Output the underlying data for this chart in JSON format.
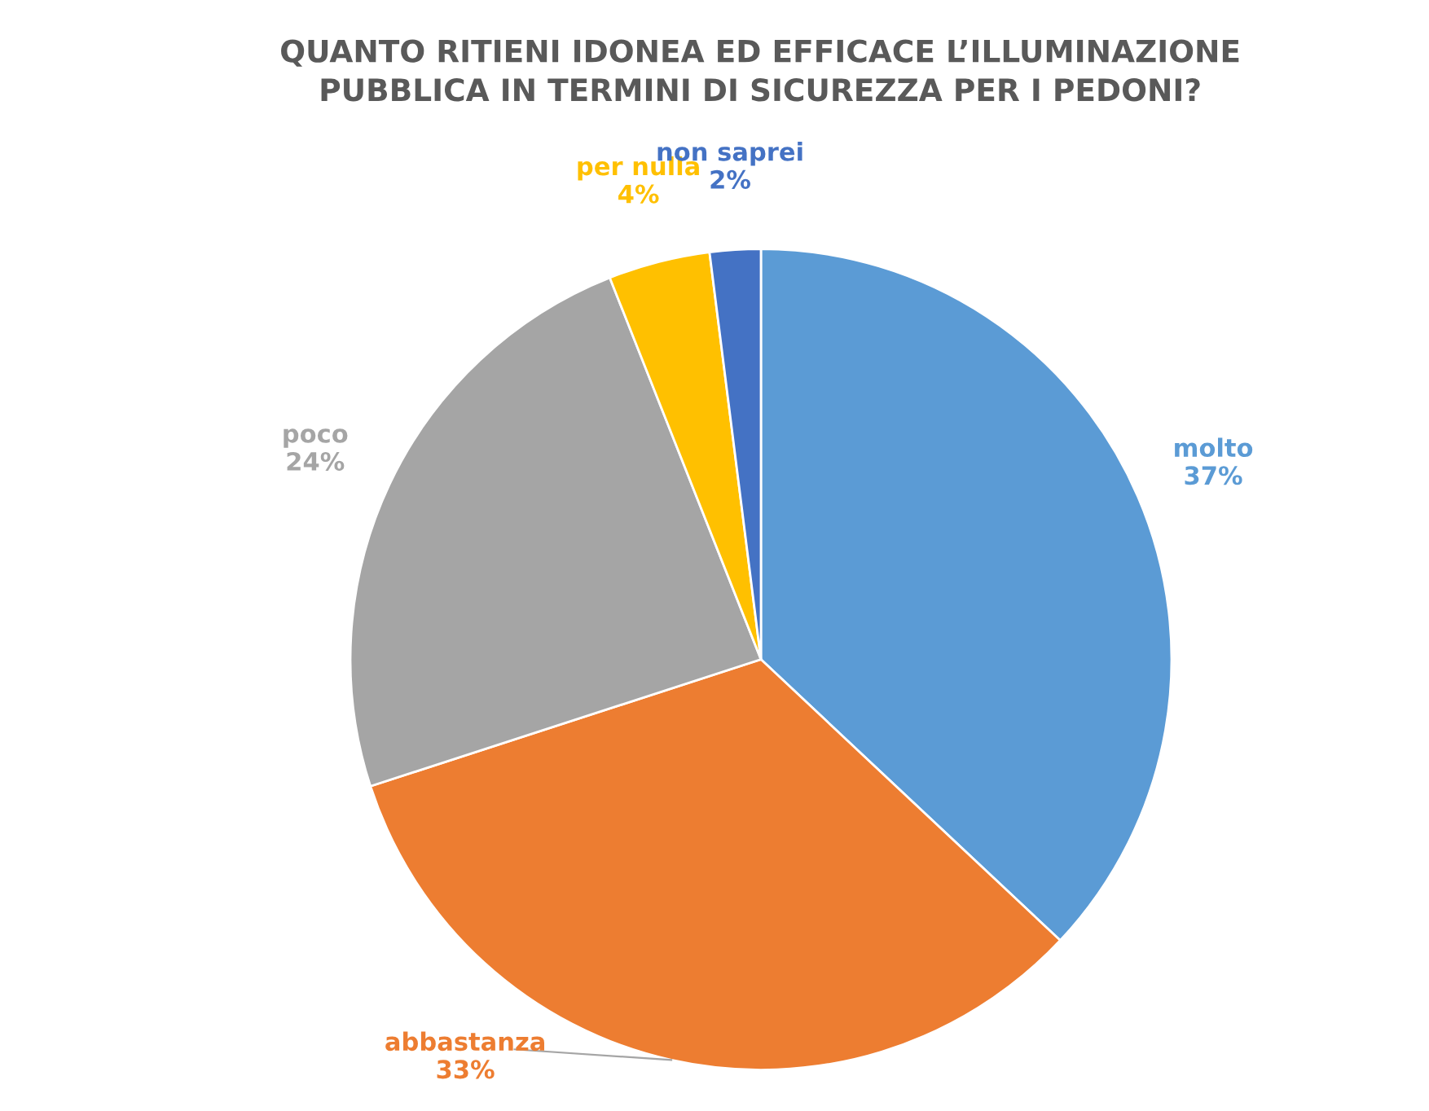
{
  "chart_data": {
    "type": "pie",
    "title": "QUANTO RITIENI IDONEA ED EFFICACE L’ILLUMINAZIONE\nPUBBLICA IN TERMINI DI SICUREZZA PER I PEDONI?",
    "categories": [
      "molto",
      "abbastanza",
      "poco",
      "per nulla",
      "non saprei"
    ],
    "values": [
      37,
      33,
      24,
      4,
      2
    ],
    "colors": [
      "#5b9bd5",
      "#ed7d31",
      "#a5a5a5",
      "#ffc000",
      "#4472c4"
    ],
    "value_labels": [
      "37%",
      "33%",
      "24%",
      "4%",
      "2%"
    ]
  }
}
